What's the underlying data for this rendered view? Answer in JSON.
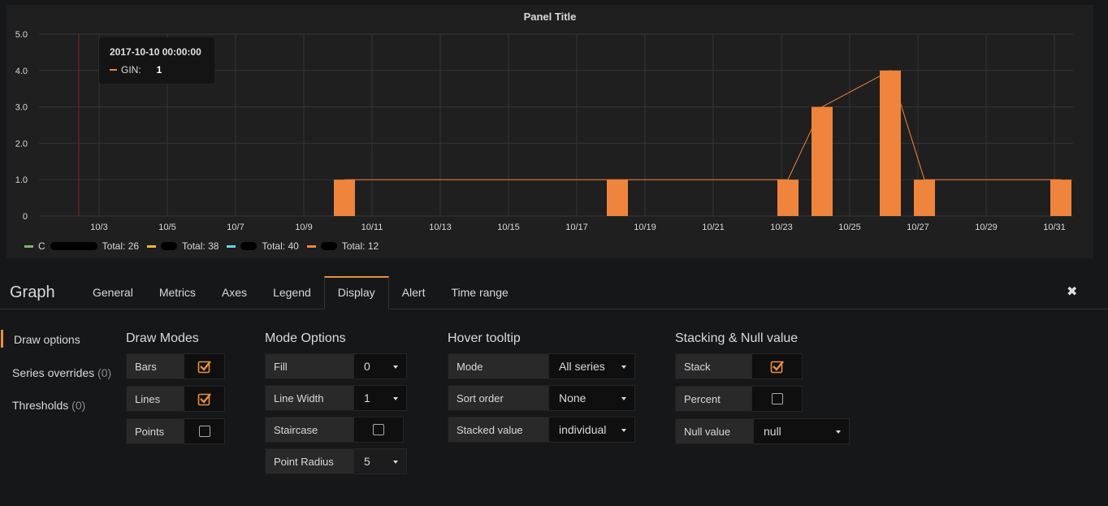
{
  "panel": {
    "title": "Panel Title",
    "tooltip": {
      "time": "2017-10-10 00:00:00",
      "series": "GIN:",
      "value": "1"
    },
    "legend": [
      {
        "color": "#7eb26d",
        "prefix": "C",
        "total": "Total: 26"
      },
      {
        "color": "#eab839",
        "prefix": "",
        "total": "Total: 38"
      },
      {
        "color": "#6ed0e0",
        "prefix": "",
        "total": "Total: 40"
      },
      {
        "color": "#ef843c",
        "prefix": "",
        "total": "Total: 12"
      }
    ]
  },
  "chart_data": {
    "type": "bar",
    "title": "Panel Title",
    "y_ticks": [
      "5.0",
      "4.0",
      "3.0",
      "2.0",
      "1.0",
      "0"
    ],
    "ylim": [
      0,
      5
    ],
    "x_ticks": [
      "10/3",
      "10/5",
      "10/7",
      "10/9",
      "10/11",
      "10/13",
      "10/15",
      "10/17",
      "10/19",
      "10/21",
      "10/23",
      "10/25",
      "10/27",
      "10/29",
      "10/31"
    ],
    "series": [
      {
        "name": "GIN",
        "color": "#ef843c",
        "points": [
          {
            "x": "2017-10-10",
            "y": 1
          },
          {
            "x": "2017-10-18",
            "y": 1
          },
          {
            "x": "2017-10-23",
            "y": 1
          },
          {
            "x": "2017-10-24",
            "y": 3
          },
          {
            "x": "2017-10-26",
            "y": 4
          },
          {
            "x": "2017-10-27",
            "y": 1
          },
          {
            "x": "2017-10-31",
            "y": 1
          }
        ]
      }
    ],
    "grid": true,
    "legend_position": "bottom-left"
  },
  "editor": {
    "title": "Graph",
    "tabs": [
      "General",
      "Metrics",
      "Axes",
      "Legend",
      "Display",
      "Alert",
      "Time range"
    ],
    "active_tab": "Display",
    "close_glyph": "✖",
    "side_nav": [
      {
        "label": "Draw options",
        "count": ""
      },
      {
        "label": "Series overrides",
        "count": "(0)"
      },
      {
        "label": "Thresholds",
        "count": "(0)"
      }
    ],
    "draw_modes": {
      "title": "Draw Modes",
      "bars": {
        "label": "Bars",
        "checked": true
      },
      "lines": {
        "label": "Lines",
        "checked": true
      },
      "points": {
        "label": "Points",
        "checked": false
      }
    },
    "mode_options": {
      "title": "Mode Options",
      "fill": {
        "label": "Fill",
        "value": "0"
      },
      "line_width": {
        "label": "Line Width",
        "value": "1"
      },
      "staircase": {
        "label": "Staircase",
        "checked": false
      },
      "point_radius": {
        "label": "Point Radius",
        "value": "5"
      }
    },
    "hover_tooltip": {
      "title": "Hover tooltip",
      "mode": {
        "label": "Mode",
        "value": "All series"
      },
      "sort_order": {
        "label": "Sort order",
        "value": "None"
      },
      "stacked_value": {
        "label": "Stacked value",
        "value": "individual"
      }
    },
    "stacking": {
      "title": "Stacking & Null value",
      "stack": {
        "label": "Stack",
        "checked": true
      },
      "percent": {
        "label": "Percent",
        "checked": false
      },
      "null_value": {
        "label": "Null value",
        "value": "null"
      }
    }
  }
}
